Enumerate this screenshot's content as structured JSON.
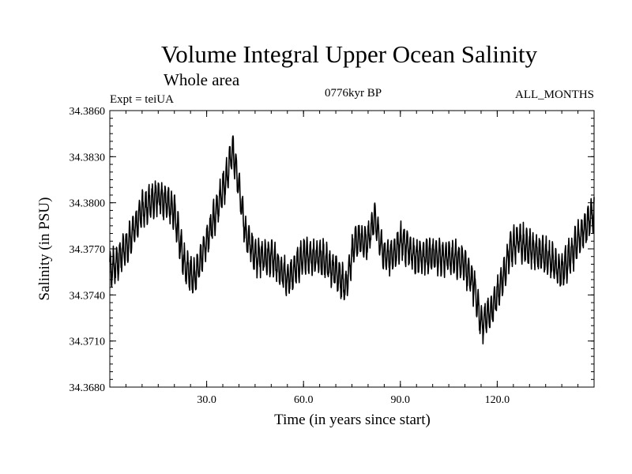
{
  "chart_data": {
    "type": "line",
    "title": "Volume Integral Upper Ocean Salinity",
    "subtitle": "Whole area",
    "experiment": "Expt = teiUA",
    "period": "0776kyr BP",
    "months": "ALL_MONTHS",
    "xlabel": "Time (in years since start)",
    "ylabel": "Salinity (in PSU)",
    "xlim": [
      0,
      150
    ],
    "ylim": [
      34.368,
      34.386
    ],
    "x_ticks": [
      30,
      60,
      90,
      120
    ],
    "x_tick_labels": [
      "30.0",
      "60.0",
      "90.0",
      "120.0"
    ],
    "y_ticks": [
      34.368,
      34.371,
      34.374,
      34.377,
      34.38,
      34.383,
      34.386
    ],
    "y_tick_labels": [
      "34.3680",
      "34.3710",
      "34.3740",
      "34.3770",
      "34.3800",
      "34.3830",
      "34.3860"
    ],
    "grid": false,
    "series": [
      {
        "name": "Volume integral upper ocean salinity",
        "sampling": "monthly",
        "x": [
          0,
          5,
          10,
          15,
          20,
          23,
          26,
          30,
          33,
          36,
          38,
          40,
          42,
          45,
          50,
          55,
          60,
          65,
          70,
          73,
          76,
          80,
          82,
          85,
          88,
          90,
          95,
          100,
          105,
          110,
          113,
          115,
          118,
          121,
          124,
          127,
          130,
          135,
          140,
          145,
          150
        ],
        "values": [
          34.3755,
          34.377,
          34.3795,
          34.3805,
          34.3795,
          34.376,
          34.375,
          34.3775,
          34.3795,
          34.3815,
          34.3835,
          34.381,
          34.378,
          34.3765,
          34.3765,
          34.375,
          34.3765,
          34.3765,
          34.3755,
          34.3745,
          34.3775,
          34.3775,
          34.379,
          34.3765,
          34.3765,
          34.3775,
          34.3765,
          34.3765,
          34.3765,
          34.376,
          34.3745,
          34.372,
          34.373,
          34.3745,
          34.377,
          34.3775,
          34.377,
          34.3765,
          34.3755,
          34.3775,
          34.3795
        ],
        "seasonal_cycle_amplitude_psu": 0.001,
        "color": "#000000"
      }
    ]
  }
}
